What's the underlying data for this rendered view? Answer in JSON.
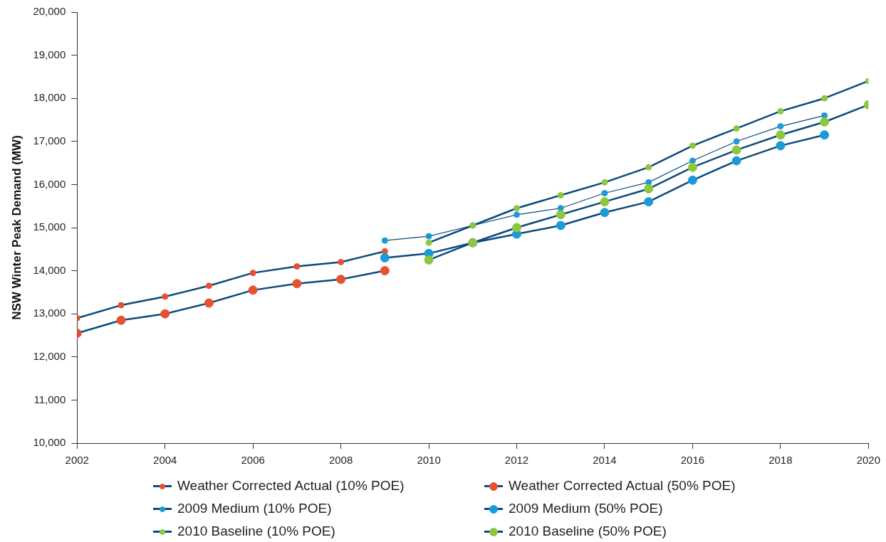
{
  "chart_data": {
    "type": "line",
    "ylabel": "NSW Winter Peak Demand (MW)",
    "xlim": [
      2002,
      2020
    ],
    "xticks": [
      2002,
      2004,
      2006,
      2008,
      2010,
      2012,
      2014,
      2016,
      2018,
      2020
    ],
    "ylim": [
      10000,
      20000
    ],
    "yticks": [
      {
        "value": 10000,
        "label": "10,000"
      },
      {
        "value": 11000,
        "label": "11,000"
      },
      {
        "value": 12000,
        "label": "12,000"
      },
      {
        "value": 13000,
        "label": "13,000"
      },
      {
        "value": 14000,
        "label": "14,000"
      },
      {
        "value": 15000,
        "label": "15,000"
      },
      {
        "value": 16000,
        "label": "16,000"
      },
      {
        "value": 17000,
        "label": "17,000"
      },
      {
        "value": 18000,
        "label": "18,000"
      },
      {
        "value": 19000,
        "label": "19,000"
      },
      {
        "value": 20000,
        "label": "20,000"
      }
    ],
    "grid": false,
    "legend": "bottom",
    "marker": "circle",
    "line_style": "solid",
    "series": [
      {
        "name": "Weather Corrected Actual (10% POE)",
        "color": "#e8512e",
        "x": [
          2002,
          2003,
          2004,
          2005,
          2006,
          2007,
          2008,
          2009
        ],
        "values": [
          12900,
          13200,
          13400,
          13650,
          13950,
          14100,
          14200,
          14450
        ]
      },
      {
        "name": "Weather Corrected Actual (50% POE)",
        "color": "#e8512e",
        "x": [
          2002,
          2003,
          2004,
          2005,
          2006,
          2007,
          2008,
          2009
        ],
        "values": [
          12550,
          12850,
          13000,
          13250,
          13550,
          13700,
          13800,
          14000
        ]
      },
      {
        "name": "2009 Medium (10% POE)",
        "color": "#1a9ad6",
        "x": [
          2009,
          2010,
          2011,
          2012,
          2013,
          2014,
          2015,
          2016,
          2017,
          2018,
          2019
        ],
        "values": [
          14700,
          14800,
          15050,
          15300,
          15450,
          15800,
          16050,
          16550,
          17000,
          17350,
          17600
        ]
      },
      {
        "name": "2009 Medium (50% POE)",
        "color": "#1a9ad6",
        "x": [
          2009,
          2010,
          2011,
          2012,
          2013,
          2014,
          2015,
          2016,
          2017,
          2018,
          2019
        ],
        "values": [
          14300,
          14400,
          14650,
          14850,
          15050,
          15350,
          15600,
          16100,
          16550,
          16900,
          17150
        ]
      },
      {
        "name": "2010 Baseline (10% POE)",
        "color": "#8dc63f",
        "x": [
          2010,
          2011,
          2012,
          2013,
          2014,
          2015,
          2016,
          2017,
          2018,
          2019,
          2020
        ],
        "values": [
          14650,
          15050,
          15450,
          15750,
          16050,
          16400,
          16900,
          17300,
          17700,
          18000,
          18400
        ]
      },
      {
        "name": "2010 Baseline (50% POE)",
        "color": "#8dc63f",
        "x": [
          2010,
          2011,
          2012,
          2013,
          2014,
          2015,
          2016,
          2017,
          2018,
          2019,
          2020
        ],
        "values": [
          14250,
          14650,
          15000,
          15300,
          15600,
          15900,
          16400,
          16800,
          17150,
          17450,
          17850
        ]
      }
    ]
  }
}
